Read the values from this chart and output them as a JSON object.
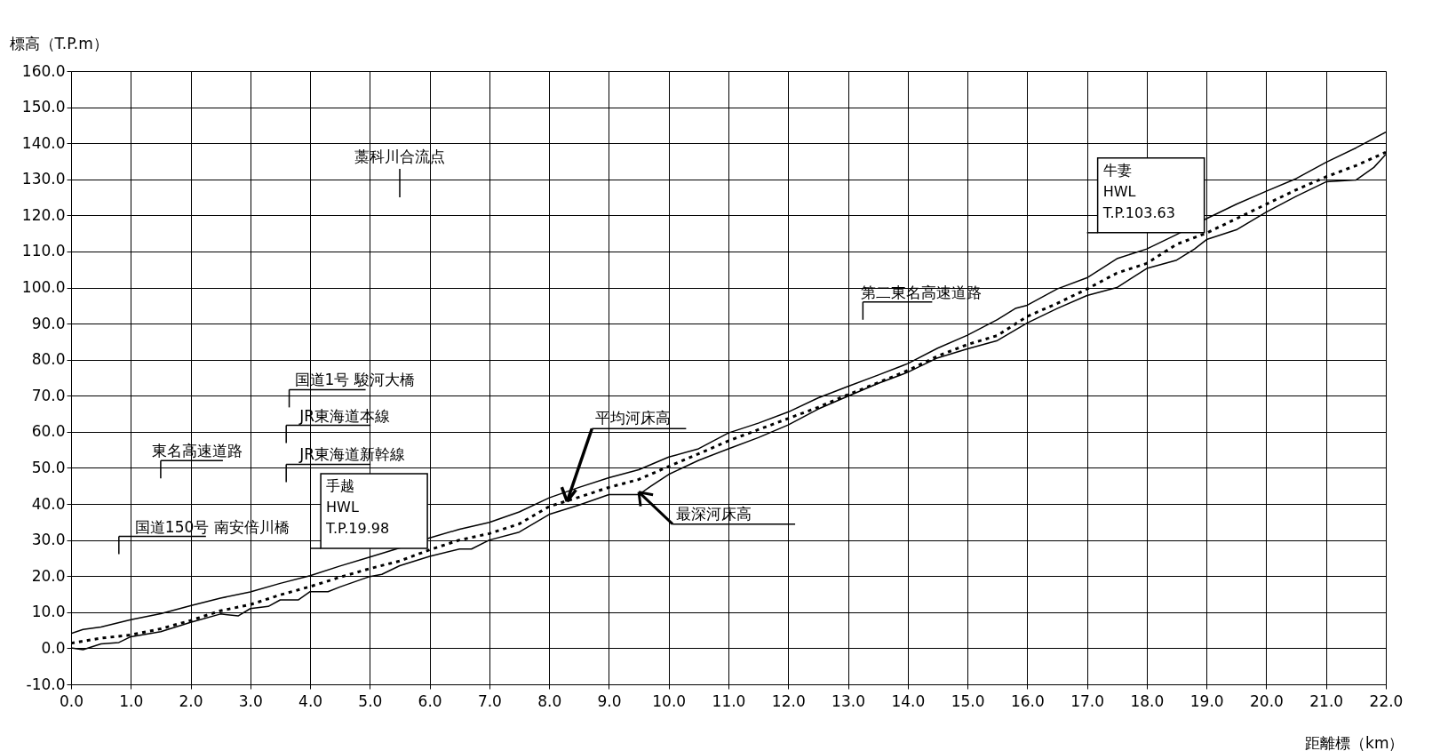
{
  "chart_data": {
    "type": "line",
    "xlabel": "距離標（km）",
    "ylabel": "標高（T.P.m）",
    "xlim": [
      0,
      22
    ],
    "ylim": [
      -10,
      160
    ],
    "xticks": [
      {
        "value": 0,
        "label": "0.0"
      },
      {
        "value": 1,
        "label": "1.0"
      },
      {
        "value": 2,
        "label": "2.0"
      },
      {
        "value": 3,
        "label": "3.0"
      },
      {
        "value": 4,
        "label": "4.0"
      },
      {
        "value": 5,
        "label": "5.0"
      },
      {
        "value": 6,
        "label": "6.0"
      },
      {
        "value": 7,
        "label": "7.0"
      },
      {
        "value": 8,
        "label": "8.0"
      },
      {
        "value": 9,
        "label": "9.0"
      },
      {
        "value": 10,
        "label": "10.0"
      },
      {
        "value": 11,
        "label": "11.0"
      },
      {
        "value": 12,
        "label": "12.0"
      },
      {
        "value": 13,
        "label": "13.0"
      },
      {
        "value": 14,
        "label": "14.0"
      },
      {
        "value": 15,
        "label": "15.0"
      },
      {
        "value": 16,
        "label": "16.0"
      },
      {
        "value": 17,
        "label": "17.0"
      },
      {
        "value": 18,
        "label": "18.0"
      },
      {
        "value": 19,
        "label": "19.0"
      },
      {
        "value": 20,
        "label": "20.0"
      },
      {
        "value": 21,
        "label": "21.0"
      },
      {
        "value": 22,
        "label": "22.0"
      }
    ],
    "yticks": [
      {
        "value": -10,
        "label": "-10.0"
      },
      {
        "value": 0,
        "label": "0.0"
      },
      {
        "value": 10,
        "label": "10.0"
      },
      {
        "value": 20,
        "label": "20.0"
      },
      {
        "value": 30,
        "label": "30.0"
      },
      {
        "value": 40,
        "label": "40.0"
      },
      {
        "value": 50,
        "label": "50.0"
      },
      {
        "value": 60,
        "label": "60.0"
      },
      {
        "value": 70,
        "label": "70.0"
      },
      {
        "value": 80,
        "label": "80.0"
      },
      {
        "value": 90,
        "label": "90.0"
      },
      {
        "value": 100,
        "label": "100.0"
      },
      {
        "value": 110,
        "label": "110.0"
      },
      {
        "value": 120,
        "label": "120.0"
      },
      {
        "value": 130,
        "label": "130.0"
      },
      {
        "value": 140,
        "label": "140.0"
      },
      {
        "value": 150,
        "label": "150.0"
      },
      {
        "value": 160,
        "label": "160.0"
      }
    ],
    "grid": true,
    "marker": "none",
    "series": [
      {
        "color": "#000000",
        "line_style": "solid",
        "x": [
          0,
          0.2,
          0.5,
          1,
          1.5,
          2,
          2.5,
          3,
          3.5,
          4,
          4.5,
          5,
          5.5,
          6,
          6.5,
          7,
          7.5,
          8,
          8.5,
          9,
          9.5,
          10,
          10.5,
          11,
          11.5,
          12,
          12.5,
          13,
          13.5,
          14,
          14.5,
          15,
          15.5,
          15.8,
          16,
          16.5,
          17,
          17.5,
          18,
          18.5,
          19,
          19.5,
          20,
          20.5,
          21,
          21.5,
          22
        ],
        "values": [
          4.1,
          5.2,
          5.9,
          7.9,
          9.6,
          11.8,
          13.9,
          15.6,
          18,
          20.1,
          22.8,
          25.3,
          27.8,
          30.6,
          33,
          34.9,
          37.8,
          41.7,
          44.6,
          47.3,
          49.5,
          53,
          55.3,
          59.7,
          62.4,
          65.5,
          69.4,
          72.6,
          75.7,
          78.9,
          83.2,
          86.8,
          91.1,
          94.2,
          95.1,
          99.6,
          102.7,
          108,
          110.7,
          114.7,
          119.1,
          123.1,
          126.7,
          130.2,
          134.7,
          138.7,
          143.1
        ]
      },
      {
        "color": "#000000",
        "line_style": "dotted",
        "x": [
          0,
          0.5,
          1,
          1.5,
          2,
          2.5,
          3,
          3.5,
          4,
          4.5,
          5,
          5.5,
          6,
          6.5,
          7,
          7.5,
          8,
          8.5,
          9,
          9.5,
          10,
          10.5,
          11,
          11.5,
          12,
          12.5,
          13,
          13.5,
          14,
          14.5,
          15,
          15.5,
          16,
          16.5,
          17,
          17.5,
          18,
          18.5,
          19,
          19.5,
          20,
          20.5,
          21,
          21.5,
          22
        ],
        "values": [
          1.4,
          2.8,
          3.7,
          5.4,
          7.7,
          10.4,
          12.1,
          14.8,
          17.1,
          19.7,
          22.1,
          24.2,
          27.3,
          30,
          31.8,
          34.5,
          39.3,
          41.9,
          44.6,
          46.8,
          50.4,
          53.9,
          57.5,
          60.6,
          63.7,
          66.8,
          70.3,
          73.6,
          77,
          81,
          84.2,
          86.7,
          92,
          95.6,
          99.6,
          104,
          106.7,
          112,
          115.1,
          119.1,
          123.1,
          127.1,
          130.7,
          133.8,
          137.5
        ]
      },
      {
        "color": "#000000",
        "line_style": "solid",
        "x": [
          0,
          0.2,
          0.5,
          0.8,
          1,
          1.5,
          2,
          2.5,
          2.8,
          3,
          3.3,
          3.5,
          3.8,
          4,
          4.3,
          4.5,
          5,
          5.2,
          5.5,
          6,
          6.5,
          6.7,
          7,
          7.5,
          8,
          8.5,
          9,
          9.5,
          9.7,
          10,
          10.5,
          11,
          11.5,
          12,
          12.5,
          13,
          13.5,
          14,
          14.5,
          15,
          15.5,
          16,
          16.5,
          17,
          17.5,
          18,
          18.5,
          18.8,
          19,
          19.5,
          20,
          20.5,
          21,
          21.5,
          21.8,
          22
        ],
        "values": [
          0.1,
          -0.4,
          1.2,
          1.6,
          3.2,
          4.6,
          7.2,
          9.5,
          9.0,
          11,
          11.6,
          13.4,
          13.4,
          15.7,
          15.7,
          17,
          19.9,
          20.5,
          22.9,
          25.5,
          27.5,
          27.5,
          30,
          32.2,
          37.1,
          39.7,
          42.6,
          42.6,
          44.9,
          48.2,
          52.1,
          55.3,
          58.4,
          61.9,
          66.3,
          69.9,
          73.4,
          76.5,
          80.5,
          83,
          85.3,
          90.2,
          94.2,
          97.8,
          100,
          105.3,
          107.6,
          110.7,
          113.3,
          116,
          120.9,
          125.3,
          129.3,
          129.8,
          133.3,
          136.9
        ]
      }
    ],
    "annotations": [
      "藁科川合流点",
      "国道1号 駿河大橋",
      "JR東海道本線",
      "東名高速道路",
      "JR東海道新幹線",
      "国道150号 南安倍川橋",
      "手越\nHWL\nT.P.19.98",
      "第二東名高速道路",
      "牛妻\nHWL\nT.P.103.63",
      {
        "text": "平均河床高",
        "x": 8.3,
        "y": 40.7
      },
      {
        "text": "最深河床高",
        "x": 9.5,
        "y": 43.3
      }
    ]
  }
}
